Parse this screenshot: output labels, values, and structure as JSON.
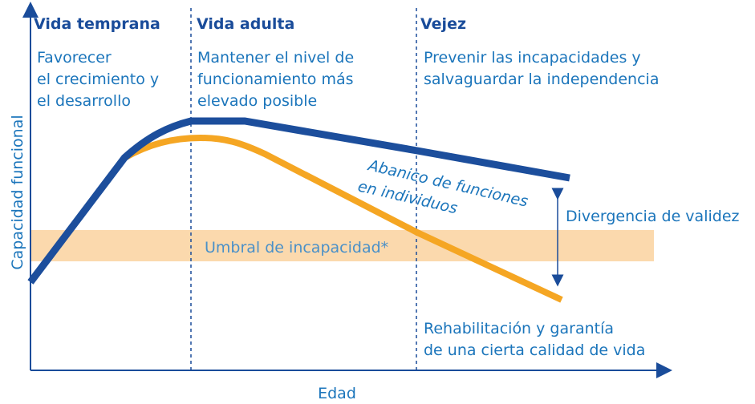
{
  "stages": [
    {
      "title": "Vida temprana",
      "description": [
        "Favorecer",
        "el crecimiento y",
        "el desarrollo"
      ]
    },
    {
      "title": "Vida adulta",
      "description": [
        "Mantener el nivel de",
        "funcionamiento más",
        "elevado posible"
      ]
    },
    {
      "title": "Vejez",
      "description": [
        "Prevenir las incapacidades y",
        "salvaguardar la independencia"
      ]
    }
  ],
  "range_label": [
    "Abanico de funciones",
    "en individuos"
  ],
  "divergence_label": "Divergencia de validez",
  "threshold_label": "Umbral de incapacidad*",
  "rehab_label": [
    "Rehabilitación y garantía",
    "de una cierta calidad de vida"
  ],
  "y_axis_label": "Capacidad funcional",
  "x_axis_label": "Edad"
}
